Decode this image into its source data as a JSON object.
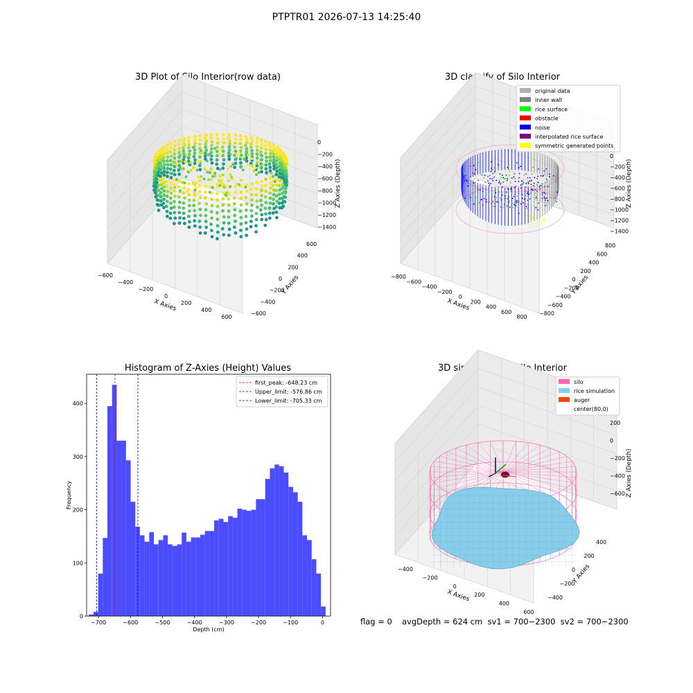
{
  "suptitle": "PTPTR01 2026-07-13 14:25:40",
  "footer": {
    "flag": "flag = 0",
    "stats": "avgDepth = 624 cm  sv1 = 700~2300  sv2 = 700~2300"
  },
  "colors": {
    "hist_bar": "#4c4cff",
    "first_peak_line": "#ff0000",
    "limit_lines": "#0000cc",
    "silo_wire": "#ff69b4",
    "rice_sim": "#87ceeb",
    "auger": "#ff4500"
  },
  "chart_data": [
    {
      "type": "scatter",
      "title": "3D Plot of Silo Interior(row data)",
      "xlabel": "X Axies",
      "ylabel": "Y Axies",
      "zlabel": "Z Axies (Depth)",
      "x_ticks": [
        "−600",
        "−400",
        "−200",
        "0",
        "200",
        "400",
        "600"
      ],
      "y_ticks": [
        "−600",
        "−400",
        "−200",
        "0",
        "200",
        "400",
        "600"
      ],
      "z_ticks": [
        "0",
        "−200",
        "−400",
        "−600",
        "−800",
        "−1000",
        "−1200",
        "−1400"
      ],
      "colormap": "viridis"
    },
    {
      "type": "scatter",
      "title": "3D classify of Silo Interior",
      "xlabel": "X Axies",
      "ylabel": "Y Axies",
      "zlabel": "Z Axies (Depth)",
      "x_ticks": [
        "−800",
        "−600",
        "−400",
        "−200",
        "0",
        "200",
        "400",
        "600",
        "800"
      ],
      "y_ticks": [
        "−800",
        "−600",
        "−400",
        "−200",
        "0",
        "200",
        "400",
        "600",
        "800"
      ],
      "z_ticks": [
        "0",
        "−200",
        "−400",
        "−600",
        "−800",
        "−1000",
        "−1200",
        "−1400"
      ],
      "legend": [
        {
          "label": "original data",
          "color": "#b0b0b0"
        },
        {
          "label": "inner wall",
          "color": "#808080"
        },
        {
          "label": "rice surface",
          "color": "#00ff00"
        },
        {
          "label": "obstacle",
          "color": "#ff0000"
        },
        {
          "label": "noise",
          "color": "#0000ff"
        },
        {
          "label": "interpolated rice surface",
          "color": "#800080"
        },
        {
          "label": "symmetric generated points",
          "color": "#ffff00"
        }
      ]
    },
    {
      "type": "bar",
      "title": "Histogram of Z-Axies (Height) Values",
      "xlabel": "Depth (cm)",
      "ylabel": "Frequency",
      "xlim": [
        -737,
        25
      ],
      "ylim": [
        0,
        455
      ],
      "x_ticks": [
        -700,
        -600,
        -500,
        -400,
        -300,
        -200,
        -100,
        0
      ],
      "x_tick_labels": [
        "−700",
        "−600",
        "−500",
        "−400",
        "−300",
        "−200",
        "−100",
        "0"
      ],
      "y_ticks": [
        0,
        100,
        200,
        300,
        400
      ],
      "y_tick_labels": [
        "0",
        "100",
        "200",
        "300",
        "400"
      ],
      "bin_start": -730,
      "bin_width": 14.5,
      "values": [
        3,
        8,
        80,
        147,
        395,
        435,
        330,
        330,
        293,
        215,
        168,
        152,
        140,
        158,
        135,
        143,
        152,
        135,
        132,
        135,
        157,
        140,
        148,
        148,
        153,
        160,
        160,
        180,
        183,
        177,
        188,
        185,
        202,
        200,
        198,
        200,
        220,
        220,
        258,
        278,
        285,
        282,
        270,
        243,
        233,
        215,
        152,
        143,
        107,
        80,
        18
      ],
      "vlines": [
        {
          "x": -648.23,
          "label": "first_peak: -648.23 cm",
          "style": "first_peak"
        },
        {
          "x": -576.86,
          "label": "Upper_limit: -576.86 cm",
          "style": "limit"
        },
        {
          "x": -705.33,
          "label": "Lower_limit: -705.33 cm",
          "style": "limit"
        }
      ]
    },
    {
      "type": "surface",
      "title": "3D simulation of Silo Interior",
      "xlabel": "X Axies",
      "ylabel": "Y Axies",
      "zlabel": "Z Axies (Depth)",
      "x_ticks": [
        "−400",
        "−200",
        "0",
        "200",
        "400",
        "600"
      ],
      "y_ticks": [
        "−400",
        "−200",
        "0",
        "200",
        "400"
      ],
      "z_ticks": [
        "200",
        "0",
        "−200",
        "−400",
        "−600"
      ],
      "legend": [
        {
          "label": "silo",
          "color": "#ff69b4"
        },
        {
          "label": "rice simulation",
          "color": "#87ceeb"
        },
        {
          "label": "auger",
          "color": "#ff4500"
        },
        {
          "label": "center(80,0)",
          "color": "#ffffff"
        }
      ]
    }
  ]
}
